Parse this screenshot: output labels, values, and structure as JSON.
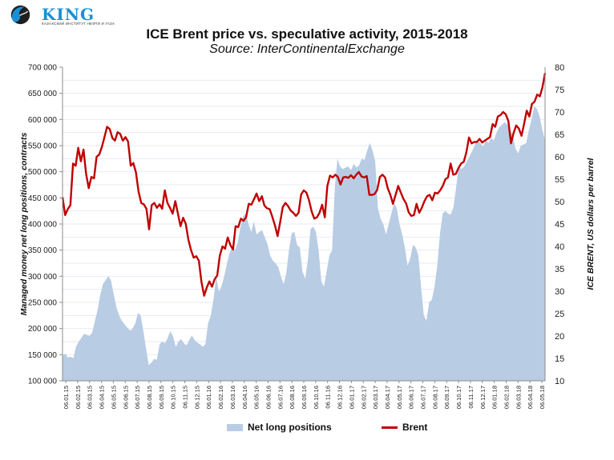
{
  "logo": {
    "name": "KING",
    "subtitle": "КАЗАХСКИЙ ИНСТИТУТ НЕФТИ И ГАЗА"
  },
  "chart_data": {
    "type": "area+line",
    "title": "ICE Brent price vs. speculative activity, 2015-2018",
    "subtitle": "Source: InterContinentalExchange",
    "ylabel": "Managed money net long positions, contracts",
    "y2label": "ICE BRENT, US dollars per barrel",
    "ylim": [
      100000,
      700000
    ],
    "y2lim": [
      10,
      80
    ],
    "yticks": [
      "100 000",
      "150 000",
      "200 000",
      "250 000",
      "300 000",
      "350 000",
      "400 000",
      "450 000",
      "500 000",
      "550 000",
      "600 000",
      "650 000",
      "700 000"
    ],
    "y2ticks": [
      "10",
      "15",
      "20",
      "25",
      "30",
      "35",
      "40",
      "45",
      "50",
      "55",
      "60",
      "65",
      "70",
      "75",
      "80"
    ],
    "grid": true,
    "legend_position": "bottom",
    "categories": [
      "06.01.15",
      "06.02.15",
      "06.03.15",
      "06.04.15",
      "06.05.15",
      "06.06.15",
      "06.07.15",
      "06.08.15",
      "06.09.15",
      "06.10.15",
      "06.11.15",
      "06.12.15",
      "06.01.16",
      "06.02.16",
      "06.03.16",
      "06.04.16",
      "06.05.16",
      "06.06.16",
      "06.07.16",
      "06.08.16",
      "06.09.16",
      "06.10.16",
      "06.11.16",
      "06.12.16",
      "06.01.17",
      "06.02.17",
      "06.03.17",
      "06.04.17",
      "06.05.17",
      "06.06.17",
      "06.07.17",
      "06.08.17",
      "06.09.17",
      "06.10.17",
      "06.11.17",
      "06.12.17",
      "06.01.18",
      "06.02.18",
      "06.03.18",
      "06.04.18",
      "06.05.18"
    ],
    "series": [
      {
        "name": "Net long positions",
        "axis": "left",
        "color": "#b8cce4",
        "type": "area",
        "values": [
          148000,
          152000,
          145000,
          146000,
          143000,
          165000,
          175000,
          182000,
          190000,
          188000,
          186000,
          192000,
          215000,
          235000,
          265000,
          285000,
          293000,
          300000,
          292000,
          265000,
          240000,
          225000,
          215000,
          208000,
          202000,
          196000,
          200000,
          210000,
          230000,
          225000,
          195000,
          160000,
          130000,
          135000,
          142000,
          140000,
          170000,
          175000,
          172000,
          182000,
          195000,
          185000,
          165000,
          175000,
          180000,
          172000,
          168000,
          178000,
          187000,
          178000,
          173000,
          170000,
          165000,
          170000,
          210000,
          225000,
          255000,
          300000,
          270000,
          282000,
          300000,
          325000,
          345000,
          355000,
          350000,
          365000,
          395000,
          415000,
          420000,
          400000,
          385000,
          405000,
          380000,
          385000,
          388000,
          375000,
          362000,
          340000,
          330000,
          325000,
          318000,
          300000,
          285000,
          305000,
          350000,
          382000,
          385000,
          360000,
          355000,
          310000,
          295000,
          330000,
          390000,
          395000,
          385000,
          350000,
          290000,
          280000,
          310000,
          340000,
          350000,
          470000,
          525000,
          510000,
          505000,
          508000,
          510000,
          503000,
          515000,
          508000,
          512000,
          525000,
          522000,
          540000,
          555000,
          540000,
          520000,
          430000,
          410000,
          400000,
          380000,
          400000,
          420000,
          440000,
          430000,
          400000,
          380000,
          355000,
          320000,
          335000,
          360000,
          355000,
          340000,
          280000,
          225000,
          215000,
          250000,
          255000,
          280000,
          320000,
          380000,
          420000,
          425000,
          420000,
          418000,
          432000,
          470000,
          510000,
          505000,
          510000,
          520000,
          530000,
          540000,
          552000,
          560000,
          555000,
          548000,
          560000,
          555000,
          565000,
          560000,
          575000,
          585000,
          590000,
          595000,
          590000,
          580000,
          570000,
          545000,
          535000,
          550000,
          552000,
          555000,
          580000,
          600000,
          625000,
          620000,
          605000,
          580000,
          560000
        ]
      },
      {
        "name": "Brent",
        "axis": "right",
        "color": "#c00000",
        "type": "line",
        "values": [
          51.0,
          47.0,
          48.3,
          49.2,
          58.5,
          58.0,
          62.0,
          59.0,
          61.6,
          56.2,
          53.0,
          55.5,
          55.2,
          60.0,
          60.5,
          62.2,
          64.4,
          66.7,
          66.2,
          64.2,
          63.6,
          65.5,
          65.1,
          63.6,
          64.4,
          63.4,
          58.0,
          58.6,
          56.5,
          52.2,
          49.7,
          49.4,
          48.4,
          43.8,
          49.2,
          49.7,
          48.6,
          49.4,
          48.4,
          52.5,
          49.7,
          48.6,
          47.3,
          50.1,
          47.3,
          44.5,
          46.4,
          45.0,
          41.5,
          39.2,
          37.5,
          37.8,
          36.8,
          32.0,
          29.0,
          30.8,
          32.2,
          31.0,
          32.7,
          33.5,
          38.0,
          40.0,
          39.5,
          42.0,
          40.3,
          39.3,
          44.5,
          44.3,
          46.2,
          45.7,
          46.5,
          49.5,
          49.3,
          50.5,
          51.8,
          50.1,
          51.2,
          49.1,
          48.5,
          48.3,
          46.6,
          44.7,
          42.3,
          45.5,
          48.8,
          49.7,
          49.0,
          48.0,
          47.5,
          46.8,
          47.5,
          51.6,
          52.5,
          52.0,
          50.3,
          47.8,
          46.2,
          46.5,
          47.5,
          49.3,
          46.5,
          53.5,
          55.8,
          55.4,
          56.0,
          55.5,
          53.8,
          55.4,
          55.5,
          55.3,
          55.9,
          55.2,
          56.0,
          56.6,
          55.6,
          55.4,
          55.7,
          51.5,
          51.5,
          51.7,
          52.6,
          55.5,
          56.0,
          55.4,
          53.0,
          51.5,
          49.5,
          51.5,
          53.5,
          52.0,
          50.6,
          49.6,
          47.6,
          46.8,
          47.0,
          49.5,
          47.5,
          48.6,
          50.1,
          51.2,
          51.5,
          50.3,
          52.0,
          51.8,
          52.5,
          53.5,
          55.0,
          55.4,
          58.5,
          56.0,
          56.2,
          57.5,
          58.5,
          58.9,
          61.0,
          64.3,
          63.0,
          63.3,
          63.3,
          64.0,
          63.2,
          63.6,
          64.0,
          64.4,
          67.3,
          66.7,
          69.0,
          69.3,
          70.0,
          69.5,
          68.0,
          63.0,
          65.3,
          67.0,
          66.3,
          64.7,
          67.3,
          70.3,
          69.0,
          71.8,
          72.3,
          73.9,
          73.5,
          75.5,
          78.7
        ]
      }
    ]
  }
}
